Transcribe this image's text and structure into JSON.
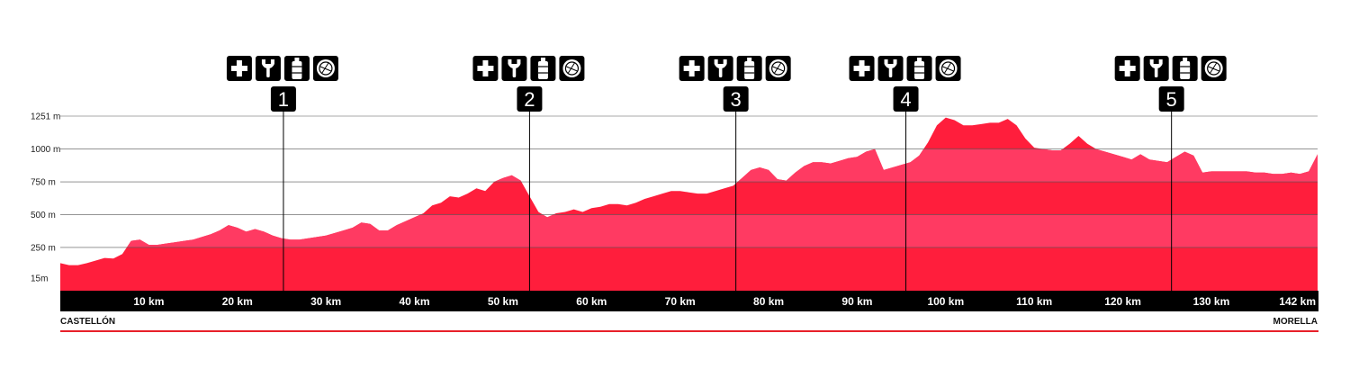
{
  "chart_data": {
    "type": "area",
    "title": "",
    "xlabel": "",
    "ylabel": "",
    "xlim": [
      0,
      142
    ],
    "ylim": [
      -80,
      1251
    ],
    "grid": true,
    "colors": {
      "area": "#ff1e3c",
      "band_light": "#ff3a62",
      "axis_bar": "#000000",
      "bottom_line": "#e8202a",
      "gridline": "#555555"
    },
    "y_ticks": [
      {
        "value": 1251,
        "label": "1251 m"
      },
      {
        "value": 1000,
        "label": "1000 m"
      },
      {
        "value": 750,
        "label": "750 m"
      },
      {
        "value": 500,
        "label": "500 m"
      },
      {
        "value": 250,
        "label": "250 m"
      },
      {
        "value": 15,
        "label": "15m"
      }
    ],
    "x_ticks": [
      {
        "value": 10,
        "label": "10 km"
      },
      {
        "value": 20,
        "label": "20 km"
      },
      {
        "value": 30,
        "label": "30 km"
      },
      {
        "value": 40,
        "label": "40 km"
      },
      {
        "value": 50,
        "label": "50 km"
      },
      {
        "value": 60,
        "label": "60 km"
      },
      {
        "value": 70,
        "label": "70 km"
      },
      {
        "value": 80,
        "label": "80 km"
      },
      {
        "value": 90,
        "label": "90 km"
      },
      {
        "value": 100,
        "label": "100 km"
      },
      {
        "value": 110,
        "label": "110 km"
      },
      {
        "value": 120,
        "label": "120 km"
      },
      {
        "value": 130,
        "label": "130 km"
      },
      {
        "value": 142,
        "label": "142 km"
      }
    ],
    "start_label": "CASTELLÓN",
    "end_label": "MORELLA",
    "aid_stations": [
      {
        "number": "1",
        "km": 25.2,
        "icons": [
          "first-aid-icon",
          "wrench-icon",
          "water-bottle-icon",
          "food-icon"
        ]
      },
      {
        "number": "2",
        "km": 53.0,
        "icons": [
          "first-aid-icon",
          "wrench-icon",
          "water-bottle-icon",
          "food-icon"
        ]
      },
      {
        "number": "3",
        "km": 76.3,
        "icons": [
          "first-aid-icon",
          "wrench-icon",
          "water-bottle-icon",
          "food-icon"
        ]
      },
      {
        "number": "4",
        "km": 95.5,
        "icons": [
          "first-aid-icon",
          "wrench-icon",
          "water-bottle-icon",
          "food-icon"
        ]
      },
      {
        "number": "5",
        "km": 125.5,
        "icons": [
          "first-aid-icon",
          "wrench-icon",
          "water-bottle-icon",
          "food-icon"
        ]
      }
    ],
    "x": [
      0,
      1,
      2,
      3,
      4,
      5,
      6,
      7,
      8,
      9,
      10,
      11,
      12,
      13,
      14,
      15,
      16,
      17,
      18,
      19,
      20,
      21,
      22,
      23,
      24,
      25,
      26,
      27,
      28,
      29,
      30,
      31,
      32,
      33,
      34,
      35,
      36,
      37,
      38,
      39,
      40,
      41,
      42,
      43,
      44,
      45,
      46,
      47,
      48,
      49,
      50,
      51,
      52,
      53,
      54,
      55,
      56,
      57,
      58,
      59,
      60,
      61,
      62,
      63,
      64,
      65,
      66,
      67,
      68,
      69,
      70,
      71,
      72,
      73,
      74,
      75,
      76,
      77,
      78,
      79,
      80,
      81,
      82,
      83,
      84,
      85,
      86,
      87,
      88,
      89,
      90,
      91,
      92,
      93,
      94,
      95,
      96,
      97,
      98,
      99,
      100,
      101,
      102,
      103,
      104,
      105,
      106,
      107,
      108,
      109,
      110,
      111,
      112,
      113,
      114,
      115,
      116,
      117,
      118,
      119,
      120,
      121,
      122,
      123,
      124,
      125,
      126,
      127,
      128,
      129,
      130,
      131,
      132,
      133,
      134,
      135,
      136,
      137,
      138,
      139,
      140,
      141,
      142
    ],
    "series": [
      {
        "values": [
          130,
          115,
          115,
          130,
          150,
          170,
          165,
          200,
          300,
          310,
          270,
          270,
          280,
          290,
          300,
          310,
          330,
          350,
          380,
          420,
          400,
          370,
          390,
          370,
          340,
          320,
          310,
          310,
          320,
          330,
          340,
          360,
          380,
          400,
          440,
          430,
          380,
          380,
          420,
          450,
          480,
          510,
          570,
          590,
          640,
          630,
          660,
          700,
          680,
          750,
          780,
          800,
          760,
          640,
          520,
          480,
          510,
          520,
          540,
          520,
          550,
          560,
          580,
          580,
          570,
          590,
          620,
          640,
          660,
          680,
          680,
          670,
          660,
          660,
          680,
          700,
          720,
          780,
          840,
          860,
          840,
          770,
          760,
          820,
          870,
          900,
          900,
          890,
          910,
          930,
          940,
          980,
          1000,
          840,
          860,
          880,
          900,
          950,
          1050,
          1180,
          1240,
          1220,
          1180,
          1180,
          1190,
          1200,
          1200,
          1230,
          1180,
          1080,
          1010,
          1000,
          990,
          990,
          1040,
          1100,
          1040,
          1000,
          980,
          960,
          940,
          920,
          960,
          920,
          910,
          900,
          940,
          980,
          950,
          820,
          830,
          830,
          830,
          830,
          830,
          820,
          820,
          810,
          810,
          820,
          810,
          830,
          960
        ]
      }
    ]
  }
}
